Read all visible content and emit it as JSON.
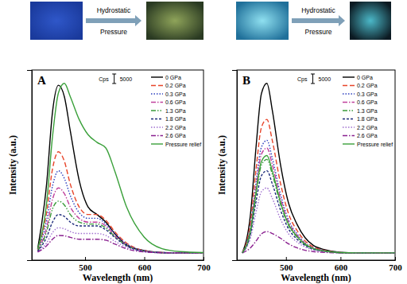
{
  "chart_data": [
    {
      "type": "line",
      "title": "A",
      "annotations": [
        "Hydrostatic",
        "Pressure"
      ],
      "x_label": "Wavelength (nm)",
      "y_label": "Intensity (a.u.)",
      "scale_bar": {
        "label": "Cps",
        "value": 5000
      },
      "xlim": [
        410,
        700
      ],
      "xticks": [
        500,
        600,
        700
      ],
      "ylim": [
        0,
        100000
      ],
      "tick_labels": "x",
      "legend": "upper right",
      "x": [
        420,
        435,
        445,
        455,
        465,
        475,
        490,
        505,
        520,
        535,
        550,
        570,
        600,
        630,
        660,
        700
      ],
      "series": [
        {
          "name": "0 GPa",
          "color": "#000000",
          "line_style": "solid",
          "values": [
            6000,
            40000,
            78000,
            92000,
            86000,
            68000,
            42000,
            28000,
            24000,
            20000,
            14000,
            8000,
            5000,
            4000,
            3800,
            3800
          ]
        },
        {
          "name": "0.2 GPa",
          "color": "#e8452a",
          "line_style": "dashed",
          "values": [
            5000,
            25000,
            48000,
            57000,
            52000,
            40000,
            28000,
            24000,
            24000,
            21000,
            15000,
            9000,
            5000,
            4000,
            3800,
            3800
          ]
        },
        {
          "name": "0.3 GPa",
          "color": "#2b3fbf",
          "line_style": "dotted",
          "values": [
            5000,
            21000,
            39000,
            47000,
            43000,
            34000,
            25000,
            22000,
            22000,
            19000,
            14000,
            8500,
            5000,
            4000,
            3800,
            3800
          ]
        },
        {
          "name": "0.6 GPa",
          "color": "#c0409c",
          "line_style": "dashdot",
          "values": [
            5000,
            17000,
            32000,
            38000,
            35000,
            28000,
            22000,
            20000,
            20000,
            18000,
            13000,
            8000,
            4800,
            3900,
            3800,
            3800
          ]
        },
        {
          "name": "1.3 GPa",
          "color": "#3a9a3a",
          "line_style": "dashdotdot",
          "values": [
            4800,
            15000,
            27000,
            31000,
            29000,
            24000,
            20000,
            19000,
            19000,
            17000,
            12500,
            7800,
            4700,
            3900,
            3800,
            3800
          ]
        },
        {
          "name": "1.8 GPa",
          "color": "#1c2a7a",
          "line_style": "shortdash",
          "values": [
            4600,
            12000,
            20000,
            24000,
            23000,
            20000,
            18000,
            18000,
            18000,
            16000,
            12000,
            7500,
            4600,
            3900,
            3800,
            3800
          ]
        },
        {
          "name": "2.2 GPa",
          "color": "#a070d0",
          "line_style": "dotted",
          "values": [
            4400,
            9000,
            14500,
            17000,
            16500,
            15000,
            14000,
            14000,
            14000,
            13000,
            10000,
            6800,
            4500,
            3900,
            3800,
            3800
          ]
        },
        {
          "name": "2.6 GPa",
          "color": "#8a2090",
          "line_style": "dashdot",
          "values": [
            4200,
            7500,
            11000,
            13000,
            12800,
            12000,
            11000,
            11000,
            11000,
            10500,
            8500,
            6000,
            4300,
            3900,
            3800,
            3800
          ]
        },
        {
          "name": "Pressure relief",
          "color": "#3aa03a",
          "line_style": "solid",
          "values": [
            6000,
            30000,
            65000,
            88000,
            93000,
            86000,
            74000,
            66000,
            62000,
            59000,
            47000,
            28000,
            12000,
            6000,
            4500,
            4000
          ]
        }
      ]
    },
    {
      "type": "line",
      "title": "B",
      "annotations": [
        "Hydrostatic",
        "Pressure"
      ],
      "x_label": "Wavelength (nm)",
      "y_label": "Intensity (a.u.)",
      "scale_bar": {
        "label": "Cps",
        "value": 5000
      },
      "xlim": [
        410,
        700
      ],
      "xticks": [
        500,
        600,
        700
      ],
      "ylim": [
        0,
        100000
      ],
      "tick_labels": "x",
      "legend": "upper right",
      "x": [
        420,
        435,
        445,
        455,
        465,
        475,
        490,
        505,
        520,
        535,
        550,
        570,
        600,
        630,
        660,
        700
      ],
      "series": [
        {
          "name": "0 GPa",
          "color": "#000000",
          "line_style": "solid",
          "values": [
            3800,
            24300,
            59100,
            87600,
            93000,
            78700,
            50200,
            29700,
            19000,
            11800,
            7800,
            5600,
            4100,
            3800,
            3800,
            3800
          ]
        },
        {
          "name": "0.2 GPa",
          "color": "#e8452a",
          "line_style": "dashed",
          "values": [
            3800,
            19900,
            47300,
            69800,
            74000,
            62800,
            40300,
            24200,
            15700,
            10100,
            7000,
            5200,
            4000,
            3800,
            3800,
            3800
          ]
        },
        {
          "name": "0.3 GPa",
          "color": "#2b3fbf",
          "line_style": "dotted",
          "values": [
            3800,
            17400,
            40500,
            59400,
            63000,
            53500,
            34600,
            21000,
            13900,
            9100,
            6500,
            5000,
            4000,
            3800,
            3800,
            3800
          ]
        },
        {
          "name": "0.6 GPa",
          "color": "#c0409c",
          "line_style": "dashdot",
          "values": [
            3800,
            16500,
            38000,
            55700,
            59000,
            50200,
            32500,
            19800,
            13200,
            8800,
            6300,
            4900,
            4000,
            3800,
            3800,
            3800
          ]
        },
        {
          "name": "1.3 GPa",
          "color": "#3a9a3a",
          "line_style": "dashdotdot",
          "values": [
            3800,
            15100,
            34300,
            50000,
            53000,
            45100,
            29400,
            18100,
            12200,
            8200,
            6000,
            4800,
            3900,
            3800,
            3800,
            3800
          ]
        },
        {
          "name": "1.8 GPa",
          "color": "#1c2a7a",
          "line_style": "shortdash",
          "values": [
            3800,
            13700,
            30600,
            44400,
            47000,
            40100,
            26300,
            16300,
            11100,
            7700,
            5700,
            4700,
            3900,
            3800,
            3800,
            3800
          ]
        },
        {
          "name": "2.2 GPa",
          "color": "#a070d0",
          "line_style": "dotted",
          "values": [
            3800,
            11700,
            25000,
            36000,
            38000,
            32500,
            21600,
            13700,
            9600,
            6900,
            5300,
            4500,
            3900,
            3800,
            3800,
            3800
          ]
        },
        {
          "name": "2.6 GPa",
          "color": "#8a2090",
          "line_style": "dashdot",
          "values": [
            3800,
            6500,
            10000,
            13800,
            15000,
            14000,
            11500,
            8500,
            6500,
            5200,
            4500,
            4100,
            3800,
            3800,
            3800,
            3800
          ]
        },
        {
          "name": "Pressure relief",
          "color": "#3aa03a",
          "line_style": "solid",
          "values": [
            3800,
            15600,
            35500,
            51900,
            55000,
            46800,
            30400,
            18600,
            12500,
            8400,
            6100,
            4800,
            4000,
            3800,
            3800,
            3800
          ]
        }
      ]
    }
  ]
}
